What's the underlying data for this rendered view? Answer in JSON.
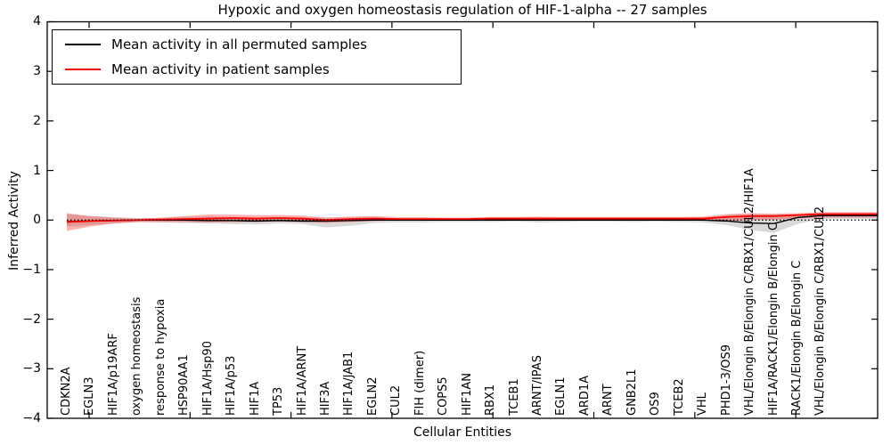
{
  "title": "Hypoxic and oxygen homeostasis regulation of HIF-1-alpha -- 27 samples",
  "legend": [
    {
      "label": "Mean activity in all permuted samples",
      "color": "#000000"
    },
    {
      "label": "Mean activity in patient samples",
      "color": "#ff0000"
    }
  ],
  "chart_data": {
    "type": "line",
    "title": "Hypoxic and oxygen homeostasis regulation of HIF-1-alpha -- 27 samples",
    "xlabel": "Cellular Entities",
    "ylabel": "Inferred Activity",
    "ylim": [
      -4,
      4
    ],
    "ytick_labels": [
      "4",
      "3",
      "2",
      "1",
      "0",
      "−1",
      "−2",
      "−3",
      "−4"
    ],
    "ytick_values": [
      4,
      3,
      2,
      1,
      0,
      -1,
      -2,
      -3,
      -4
    ],
    "grid": false,
    "legend_position": "upper left",
    "zero_line": {
      "style": "dotted",
      "color": "#000000",
      "y": 0
    },
    "categories": [
      "CDKN2A",
      "EGLN3",
      "HIF1A/p19ARF",
      "oxygen homeostasis",
      "response to hypoxia",
      "HSP90AA1",
      "HIF1A/Hsp90",
      "HIF1A/p53",
      "HIF1A",
      "TP53",
      "HIF1A/ARNT",
      "HIF3A",
      "HIF1A/JAB1",
      "EGLN2",
      "CUL2",
      "FIH (dimer)",
      "COPS5",
      "HIF1AN",
      "RBX1",
      "TCEB1",
      "ARNT/IPAS",
      "EGLN1",
      "ARD1A",
      "ARNT",
      "GNB2L1",
      "OS9",
      "TCEB2",
      "VHL",
      "PHD1-3/OS9",
      "VHL/Elongin B/Elongin C/RBX1/CUL2/HIF1A",
      "HIF1A/RACK1/Elongin B/Elongin C",
      "RACK1/Elongin B/Elongin C",
      "VHL/Elongin B/Elongin C/RBX1/CUL2"
    ],
    "series": [
      {
        "name": "Mean activity in all permuted samples",
        "color": "#000000",
        "values": [
          -0.03,
          -0.02,
          -0.01,
          0.0,
          0.0,
          0.0,
          -0.01,
          -0.01,
          -0.02,
          -0.01,
          -0.02,
          -0.02,
          -0.01,
          0.0,
          0.0,
          0.0,
          0.0,
          0.0,
          0.0,
          0.0,
          0.0,
          0.0,
          0.0,
          0.0,
          0.0,
          0.0,
          0.0,
          0.0,
          -0.02,
          -0.06,
          -0.07,
          0.05,
          0.09
        ]
      },
      {
        "name": "Mean activity in patient samples",
        "color": "#ff0000",
        "values": [
          -0.04,
          -0.02,
          -0.01,
          0.0,
          0.01,
          0.02,
          0.03,
          0.04,
          0.03,
          0.04,
          0.03,
          0.0,
          0.02,
          0.03,
          0.02,
          0.02,
          0.02,
          0.02,
          0.03,
          0.03,
          0.03,
          0.03,
          0.03,
          0.03,
          0.03,
          0.03,
          0.03,
          0.03,
          0.06,
          0.08,
          0.08,
          0.1,
          0.12
        ]
      }
    ],
    "bands": [
      {
        "name": "permuted samples range",
        "color": "rgba(0,0,0,0.15)",
        "lo": [
          -0.13,
          -0.1,
          -0.07,
          -0.04,
          -0.05,
          -0.06,
          -0.07,
          -0.08,
          -0.09,
          -0.07,
          -0.08,
          -0.15,
          -0.12,
          -0.06,
          -0.05,
          -0.05,
          -0.04,
          -0.04,
          -0.04,
          -0.03,
          -0.05,
          -0.04,
          -0.03,
          -0.03,
          -0.04,
          -0.03,
          -0.04,
          -0.05,
          -0.1,
          -0.2,
          -0.26,
          -0.08,
          0.02
        ],
        "hi": [
          0.12,
          0.08,
          0.06,
          0.04,
          0.04,
          0.06,
          0.07,
          0.06,
          0.05,
          0.06,
          0.05,
          0.05,
          0.05,
          0.05,
          0.04,
          0.04,
          0.04,
          0.03,
          0.03,
          0.03,
          0.04,
          0.03,
          0.03,
          0.03,
          0.04,
          0.04,
          0.04,
          0.05,
          0.1,
          0.12,
          0.11,
          0.11,
          0.13
        ]
      },
      {
        "name": "patient samples range",
        "color": "rgba(255,0,0,0.3)",
        "lo": [
          -0.22,
          -0.13,
          -0.07,
          -0.04,
          -0.04,
          -0.04,
          -0.05,
          -0.04,
          -0.04,
          -0.03,
          -0.04,
          -0.06,
          -0.04,
          -0.02,
          -0.01,
          -0.01,
          -0.01,
          0.0,
          0.0,
          0.0,
          0.0,
          0.0,
          0.0,
          0.0,
          0.0,
          0.0,
          0.0,
          0.0,
          -0.03,
          0.0,
          0.01,
          0.03,
          0.05
        ],
        "hi": [
          0.14,
          0.08,
          0.05,
          0.03,
          0.05,
          0.08,
          0.11,
          0.11,
          0.1,
          0.1,
          0.09,
          0.05,
          0.07,
          0.08,
          0.06,
          0.06,
          0.05,
          0.05,
          0.06,
          0.06,
          0.07,
          0.06,
          0.06,
          0.06,
          0.06,
          0.06,
          0.06,
          0.07,
          0.12,
          0.14,
          0.13,
          0.14,
          0.16
        ]
      }
    ]
  },
  "colors": {
    "permuted_line": "#000000",
    "patient_line": "#ff0000",
    "axis": "#000000",
    "background": "#ffffff"
  }
}
